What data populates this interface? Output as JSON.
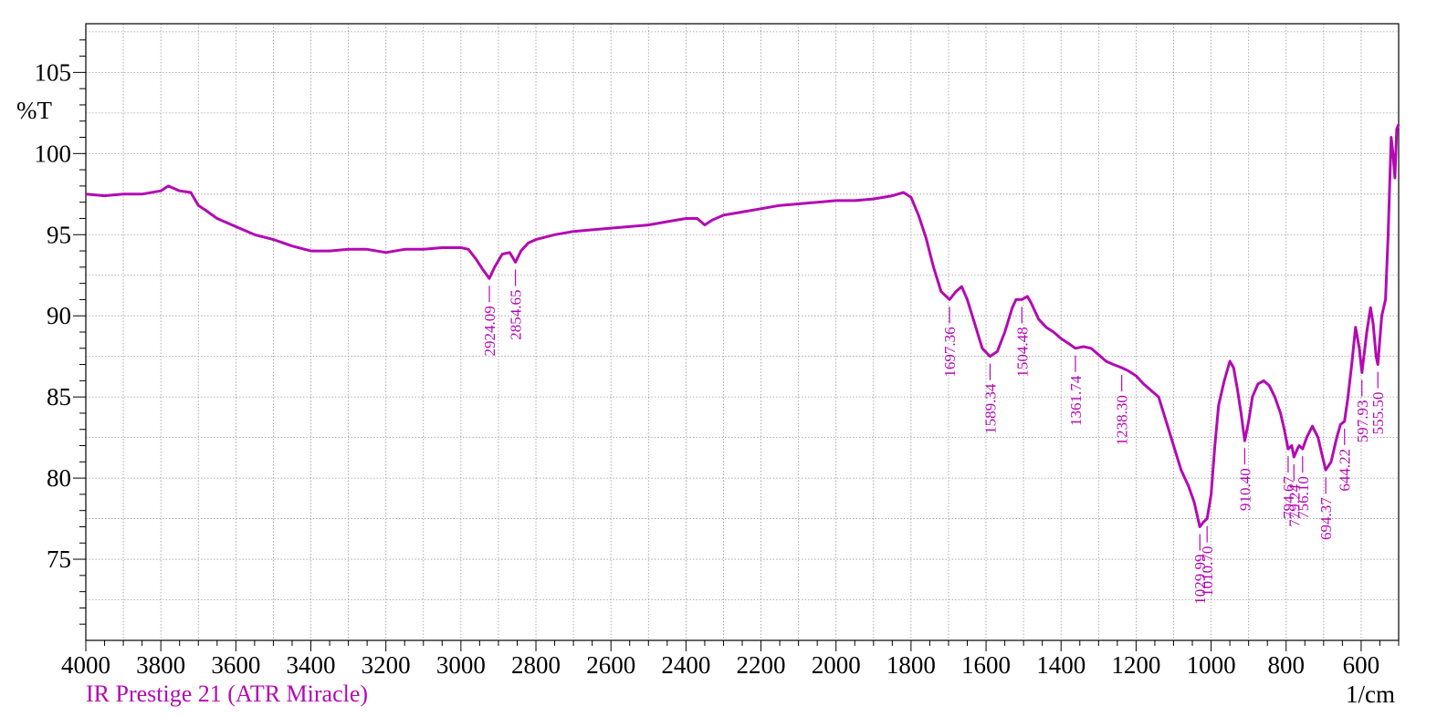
{
  "chart_data": {
    "type": "line",
    "title": "",
    "xlabel": "1/cm",
    "ylabel": "%T",
    "footer": "IR Prestige 21 (ATR Miracle)",
    "xlim": [
      4000,
      500
    ],
    "ylim": [
      70,
      108
    ],
    "x_ticks": [
      4000,
      3800,
      3600,
      3400,
      3200,
      3000,
      2800,
      2600,
      2400,
      2200,
      2000,
      1800,
      1600,
      1400,
      1200,
      1000,
      800,
      600
    ],
    "y_ticks": [
      75,
      80,
      85,
      90,
      95,
      100,
      105
    ],
    "grid": true,
    "series": [
      {
        "color": "#b30ab3",
        "points": [
          [
            4000,
            97.5
          ],
          [
            3950,
            97.4
          ],
          [
            3900,
            97.5
          ],
          [
            3850,
            97.5
          ],
          [
            3800,
            97.7
          ],
          [
            3780,
            98.0
          ],
          [
            3750,
            97.7
          ],
          [
            3720,
            97.6
          ],
          [
            3700,
            96.8
          ],
          [
            3680,
            96.5
          ],
          [
            3650,
            96.0
          ],
          [
            3600,
            95.5
          ],
          [
            3550,
            95.0
          ],
          [
            3500,
            94.7
          ],
          [
            3450,
            94.3
          ],
          [
            3400,
            94.0
          ],
          [
            3350,
            94.0
          ],
          [
            3300,
            94.1
          ],
          [
            3250,
            94.1
          ],
          [
            3200,
            93.9
          ],
          [
            3150,
            94.1
          ],
          [
            3100,
            94.1
          ],
          [
            3050,
            94.2
          ],
          [
            3000,
            94.2
          ],
          [
            2980,
            94.1
          ],
          [
            2960,
            93.5
          ],
          [
            2940,
            92.8
          ],
          [
            2924.09,
            92.3
          ],
          [
            2910,
            93.0
          ],
          [
            2890,
            93.8
          ],
          [
            2870,
            93.9
          ],
          [
            2854.65,
            93.3
          ],
          [
            2840,
            94.0
          ],
          [
            2820,
            94.5
          ],
          [
            2800,
            94.7
          ],
          [
            2750,
            95.0
          ],
          [
            2700,
            95.2
          ],
          [
            2650,
            95.3
          ],
          [
            2600,
            95.4
          ],
          [
            2550,
            95.5
          ],
          [
            2500,
            95.6
          ],
          [
            2450,
            95.8
          ],
          [
            2400,
            96.0
          ],
          [
            2370,
            96.0
          ],
          [
            2350,
            95.6
          ],
          [
            2330,
            95.9
          ],
          [
            2300,
            96.2
          ],
          [
            2250,
            96.4
          ],
          [
            2200,
            96.6
          ],
          [
            2150,
            96.8
          ],
          [
            2100,
            96.9
          ],
          [
            2050,
            97.0
          ],
          [
            2000,
            97.1
          ],
          [
            1950,
            97.1
          ],
          [
            1900,
            97.2
          ],
          [
            1850,
            97.4
          ],
          [
            1820,
            97.6
          ],
          [
            1800,
            97.3
          ],
          [
            1780,
            96.2
          ],
          [
            1760,
            94.8
          ],
          [
            1740,
            93.0
          ],
          [
            1720,
            91.5
          ],
          [
            1697.36,
            91.0
          ],
          [
            1680,
            91.5
          ],
          [
            1665,
            91.8
          ],
          [
            1650,
            91.0
          ],
          [
            1630,
            89.5
          ],
          [
            1610,
            88.0
          ],
          [
            1589.34,
            87.5
          ],
          [
            1570,
            87.8
          ],
          [
            1550,
            89.0
          ],
          [
            1530,
            90.5
          ],
          [
            1520,
            91.0
          ],
          [
            1504.48,
            91.0
          ],
          [
            1490,
            91.2
          ],
          [
            1480,
            90.8
          ],
          [
            1460,
            89.8
          ],
          [
            1440,
            89.3
          ],
          [
            1420,
            89.0
          ],
          [
            1400,
            88.6
          ],
          [
            1380,
            88.3
          ],
          [
            1361.74,
            88.0
          ],
          [
            1340,
            88.1
          ],
          [
            1320,
            88.0
          ],
          [
            1300,
            87.6
          ],
          [
            1280,
            87.2
          ],
          [
            1260,
            87.0
          ],
          [
            1238.3,
            86.8
          ],
          [
            1220,
            86.6
          ],
          [
            1200,
            86.3
          ],
          [
            1180,
            85.8
          ],
          [
            1160,
            85.4
          ],
          [
            1140,
            85.0
          ],
          [
            1120,
            83.5
          ],
          [
            1100,
            82.0
          ],
          [
            1080,
            80.5
          ],
          [
            1060,
            79.5
          ],
          [
            1045,
            78.5
          ],
          [
            1029.99,
            77.0
          ],
          [
            1020,
            77.3
          ],
          [
            1010.7,
            77.5
          ],
          [
            1000,
            79.0
          ],
          [
            990,
            82.0
          ],
          [
            980,
            84.5
          ],
          [
            965,
            86.0
          ],
          [
            950,
            87.2
          ],
          [
            940,
            86.8
          ],
          [
            930,
            85.5
          ],
          [
            920,
            84.0
          ],
          [
            910.4,
            82.3
          ],
          [
            900,
            83.5
          ],
          [
            890,
            85.0
          ],
          [
            875,
            85.8
          ],
          [
            860,
            86.0
          ],
          [
            845,
            85.7
          ],
          [
            830,
            85.0
          ],
          [
            815,
            84.0
          ],
          [
            805,
            83.0
          ],
          [
            794.67,
            81.8
          ],
          [
            785,
            82.0
          ],
          [
            779.24,
            81.3
          ],
          [
            770,
            81.8
          ],
          [
            765,
            82.0
          ],
          [
            756.1,
            81.8
          ],
          [
            745,
            82.5
          ],
          [
            730,
            83.2
          ],
          [
            715,
            82.5
          ],
          [
            705,
            81.5
          ],
          [
            694.37,
            80.5
          ],
          [
            680,
            81.0
          ],
          [
            665,
            82.5
          ],
          [
            655,
            83.3
          ],
          [
            644.22,
            83.5
          ],
          [
            635,
            85.0
          ],
          [
            625,
            87.0
          ],
          [
            615,
            89.3
          ],
          [
            605,
            88.0
          ],
          [
            597.93,
            86.5
          ],
          [
            585,
            89.0
          ],
          [
            575,
            90.5
          ],
          [
            568,
            89.5
          ],
          [
            560,
            87.5
          ],
          [
            555.5,
            87.0
          ],
          [
            545,
            90.0
          ],
          [
            535,
            91.0
          ],
          [
            528,
            95.0
          ],
          [
            520,
            101.0
          ],
          [
            515,
            100.0
          ],
          [
            510,
            98.5
          ],
          [
            505,
            101.5
          ],
          [
            500,
            101.8
          ]
        ]
      }
    ],
    "annotations": [
      {
        "x": 2924.09,
        "y": 92.3,
        "label": "2924.09"
      },
      {
        "x": 2854.65,
        "y": 93.3,
        "label": "2854.65"
      },
      {
        "x": 1697.36,
        "y": 91.0,
        "label": "1697.36"
      },
      {
        "x": 1589.34,
        "y": 87.5,
        "label": "1589.34"
      },
      {
        "x": 1504.48,
        "y": 91.0,
        "label": "1504.48"
      },
      {
        "x": 1361.74,
        "y": 88.0,
        "label": "1361.74"
      },
      {
        "x": 1238.3,
        "y": 86.8,
        "label": "1238.30"
      },
      {
        "x": 1029.99,
        "y": 77.0,
        "label": "1029.99"
      },
      {
        "x": 1010.7,
        "y": 77.5,
        "label": "1010.70"
      },
      {
        "x": 910.4,
        "y": 82.3,
        "label": "910.40"
      },
      {
        "x": 794.67,
        "y": 81.8,
        "label": "794.67"
      },
      {
        "x": 779.24,
        "y": 81.3,
        "label": "779.24"
      },
      {
        "x": 756.1,
        "y": 81.8,
        "label": "756.10"
      },
      {
        "x": 694.37,
        "y": 80.5,
        "label": "694.37"
      },
      {
        "x": 644.22,
        "y": 83.5,
        "label": "644.22"
      },
      {
        "x": 597.93,
        "y": 86.5,
        "label": "597.93"
      },
      {
        "x": 555.5,
        "y": 87.0,
        "label": "555.50"
      }
    ]
  }
}
